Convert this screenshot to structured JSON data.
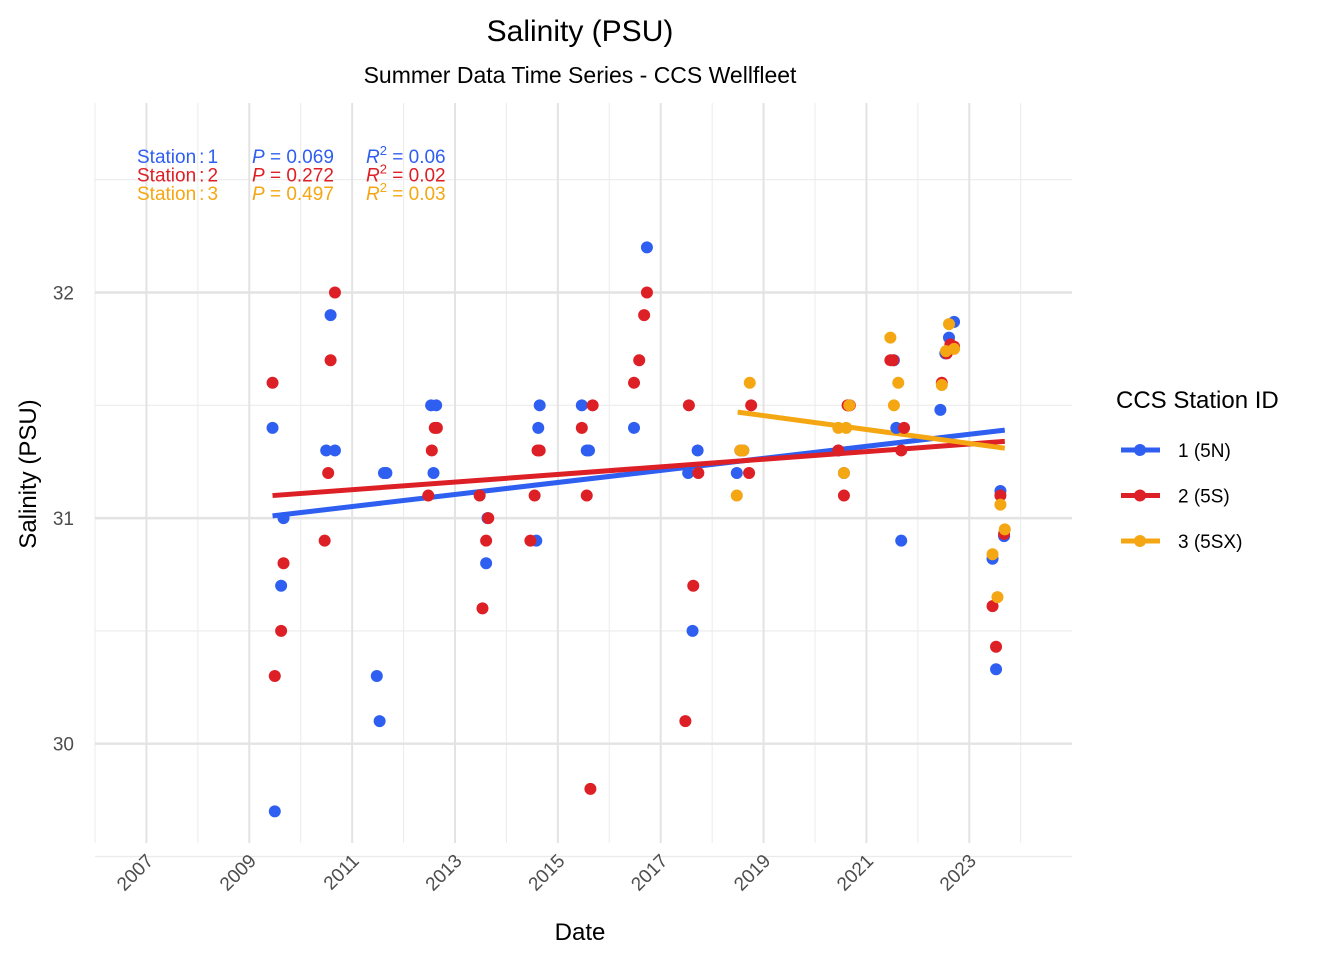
{
  "chart_data": {
    "type": "scatter",
    "title": "Salinity (PSU)",
    "subtitle": "Summer Data Time Series - CCS Wellfleet",
    "xlabel": "Date",
    "ylabel": "Salinity (PSU)",
    "x_ticks": [
      "2007",
      "2009",
      "2011",
      "2013",
      "2015",
      "2017",
      "2019",
      "2021",
      "2023"
    ],
    "y_ticks": [
      30,
      31,
      32
    ],
    "xlim": [
      "2006-01-01",
      "2024-12-31"
    ],
    "ylim": [
      29.56,
      32.84
    ],
    "grid": true,
    "legend": {
      "title": "CCS Station ID",
      "position": "right"
    },
    "annotations": [
      {
        "station": "1",
        "p": "0.069",
        "r2": "0.06",
        "color": "#2f5ff0"
      },
      {
        "station": "2",
        "p": "0.272",
        "r2": "0.02",
        "color": "#dd1f26"
      },
      {
        "station": "3",
        "p": "0.497",
        "r2": "0.03",
        "color": "#f4a712"
      }
    ],
    "series": [
      {
        "name": "1 (5N)",
        "color": "#2f5ff0",
        "trend": {
          "x": [
            "2009-06-15",
            "2023-09-10"
          ],
          "y": [
            31.01,
            31.39
          ]
        },
        "points": [
          [
            "2009-06-15",
            31.4
          ],
          [
            "2009-07-01",
            29.7
          ],
          [
            "2009-08-15",
            30.7
          ],
          [
            "2009-09-01",
            31.0
          ],
          [
            "2010-07-01",
            31.3
          ],
          [
            "2010-08-01",
            31.9
          ],
          [
            "2010-09-01",
            31.3
          ],
          [
            "2011-06-25",
            30.3
          ],
          [
            "2011-07-15",
            30.1
          ],
          [
            "2011-08-15",
            31.2
          ],
          [
            "2011-09-01",
            31.2
          ],
          [
            "2012-07-15",
            31.5
          ],
          [
            "2012-08-01",
            31.2
          ],
          [
            "2012-08-20",
            31.5
          ],
          [
            "2013-08-10",
            30.8
          ],
          [
            "2013-08-20",
            31.0
          ],
          [
            "2014-08-01",
            30.9
          ],
          [
            "2014-08-15",
            31.4
          ],
          [
            "2014-08-25",
            31.5
          ],
          [
            "2015-06-20",
            31.5
          ],
          [
            "2015-07-25",
            31.3
          ],
          [
            "2015-08-10",
            31.3
          ],
          [
            "2016-06-25",
            31.4
          ],
          [
            "2016-09-25",
            32.2
          ],
          [
            "2017-07-15",
            31.2
          ],
          [
            "2017-08-15",
            30.5
          ],
          [
            "2017-09-20",
            31.3
          ],
          [
            "2018-06-25",
            31.2
          ],
          [
            "2018-07-20",
            31.3
          ],
          [
            "2018-08-10",
            31.3
          ],
          [
            "2020-06-15",
            31.3
          ],
          [
            "2020-07-25",
            31.2
          ],
          [
            "2020-08-25",
            31.5
          ],
          [
            "2021-07-15",
            31.7
          ],
          [
            "2021-08-01",
            31.4
          ],
          [
            "2021-09-05",
            30.9
          ],
          [
            "2022-06-10",
            31.48
          ],
          [
            "2022-07-15",
            31.73
          ],
          [
            "2022-08-10",
            31.8
          ],
          [
            "2022-09-15",
            31.87
          ],
          [
            "2023-06-15",
            30.82
          ],
          [
            "2023-07-10",
            30.33
          ],
          [
            "2023-08-10",
            31.12
          ],
          [
            "2023-09-05",
            30.92
          ]
        ]
      },
      {
        "name": "2 (5S)",
        "color": "#dd1f26",
        "trend": {
          "x": [
            "2009-06-15",
            "2023-09-10"
          ],
          "y": [
            31.1,
            31.34
          ]
        },
        "points": [
          [
            "2009-06-15",
            31.6
          ],
          [
            "2009-07-01",
            30.3
          ],
          [
            "2009-08-15",
            30.5
          ],
          [
            "2009-09-01",
            30.8
          ],
          [
            "2010-06-20",
            30.9
          ],
          [
            "2010-07-15",
            31.2
          ],
          [
            "2010-08-01",
            31.7
          ],
          [
            "2010-09-01",
            32.0
          ],
          [
            "2012-06-25",
            31.1
          ],
          [
            "2012-07-20",
            31.3
          ],
          [
            "2012-08-10",
            31.4
          ],
          [
            "2012-08-25",
            31.4
          ],
          [
            "2013-06-25",
            31.1
          ],
          [
            "2013-07-15",
            30.6
          ],
          [
            "2013-08-10",
            30.9
          ],
          [
            "2013-08-25",
            31.0
          ],
          [
            "2014-06-20",
            30.9
          ],
          [
            "2014-07-20",
            31.1
          ],
          [
            "2014-08-10",
            31.3
          ],
          [
            "2014-08-25",
            31.3
          ],
          [
            "2015-06-20",
            31.4
          ],
          [
            "2015-07-25",
            31.1
          ],
          [
            "2015-08-20",
            29.8
          ],
          [
            "2015-09-05",
            31.5
          ],
          [
            "2016-06-25",
            31.6
          ],
          [
            "2016-08-01",
            31.7
          ],
          [
            "2016-09-05",
            31.9
          ],
          [
            "2016-09-25",
            32.0
          ],
          [
            "2017-06-25",
            30.1
          ],
          [
            "2017-07-20",
            31.5
          ],
          [
            "2017-08-20",
            30.7
          ],
          [
            "2017-09-25",
            31.2
          ],
          [
            "2018-09-20",
            31.2
          ],
          [
            "2018-10-05",
            31.5
          ],
          [
            "2020-06-15",
            31.3
          ],
          [
            "2020-07-25",
            31.1
          ],
          [
            "2020-08-20",
            31.5
          ],
          [
            "2020-09-05",
            31.5
          ],
          [
            "2021-06-20",
            31.7
          ],
          [
            "2021-07-10",
            31.7
          ],
          [
            "2021-09-05",
            31.3
          ],
          [
            "2021-09-25",
            31.4
          ],
          [
            "2022-06-20",
            31.6
          ],
          [
            "2022-07-25",
            31.73
          ],
          [
            "2022-08-20",
            31.77
          ],
          [
            "2022-09-15",
            31.76
          ],
          [
            "2023-06-15",
            30.61
          ],
          [
            "2023-07-10",
            30.43
          ],
          [
            "2023-08-10",
            31.1
          ],
          [
            "2023-09-05",
            30.93
          ]
        ]
      },
      {
        "name": "3 (5SX)",
        "color": "#f4a712",
        "trend": {
          "x": [
            "2018-07-01",
            "2023-09-10"
          ],
          "y": [
            31.47,
            31.31
          ]
        },
        "points": [
          [
            "2018-06-25",
            31.1
          ],
          [
            "2018-07-20",
            31.3
          ],
          [
            "2018-08-10",
            31.3
          ],
          [
            "2018-09-25",
            31.6
          ],
          [
            "2020-06-15",
            31.4
          ],
          [
            "2020-07-25",
            31.2
          ],
          [
            "2020-08-10",
            31.4
          ],
          [
            "2020-09-01",
            31.5
          ],
          [
            "2021-06-20",
            31.8
          ],
          [
            "2021-07-15",
            31.5
          ],
          [
            "2021-08-15",
            31.6
          ],
          [
            "2022-06-20",
            31.59
          ],
          [
            "2022-07-20",
            31.74
          ],
          [
            "2022-08-10",
            31.86
          ],
          [
            "2022-09-15",
            31.75
          ],
          [
            "2023-06-15",
            30.84
          ],
          [
            "2023-07-20",
            30.65
          ],
          [
            "2023-08-10",
            31.06
          ],
          [
            "2023-09-10",
            30.95
          ]
        ]
      }
    ]
  }
}
